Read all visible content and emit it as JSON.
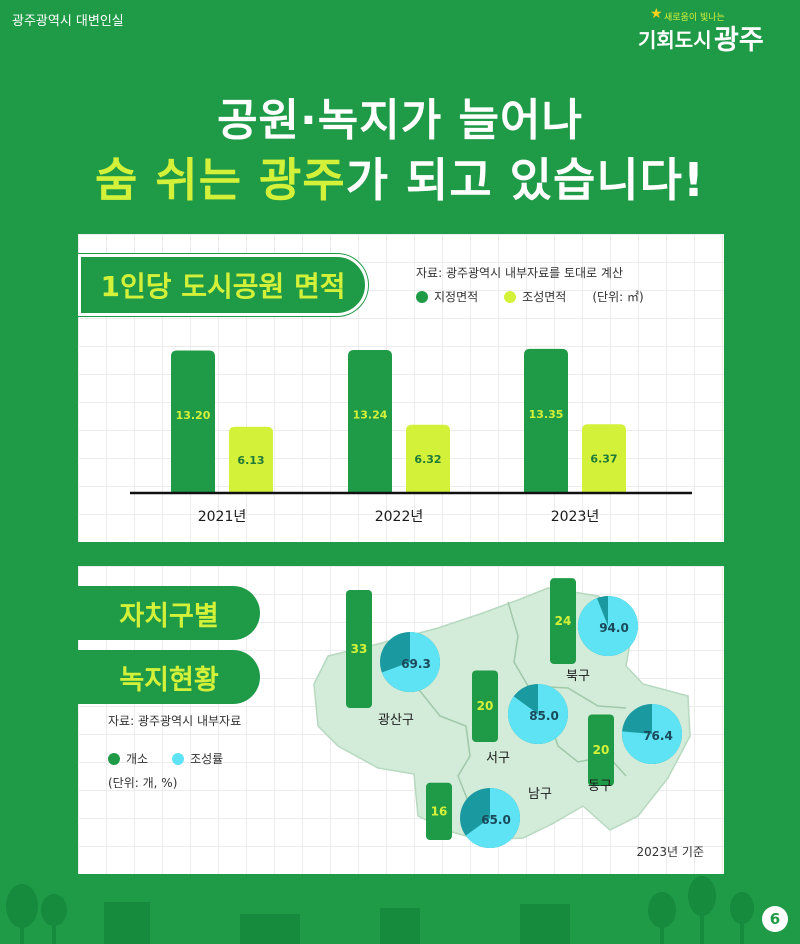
{
  "header": {
    "org": "광주광역시 대변인실",
    "logo_slogan": "새로움이 빛나는",
    "logo_main1": "기회도시",
    "logo_main2": "광주"
  },
  "title": {
    "line1": "공원·녹지가 늘어나",
    "line2_highlight": "숨 쉬는 광주",
    "line2_rest": "가 되고 있습니다!"
  },
  "colors": {
    "background": "#1f9a47",
    "designated": "#1f9a47",
    "developed": "#d4f13a",
    "rate": "#5ee3f5",
    "rate_dark": "#1a9aa0",
    "map_fill": "#d3ebd9"
  },
  "panel1": {
    "heading": "1인당 도시공원 면적",
    "source": "자료: 광주광역시 내부자료를 토대로 계산",
    "unit": "(단위: ㎡)"
  },
  "panel2": {
    "heading1": "자치구별",
    "heading2": "녹지현황",
    "source": "자료: 광주광역시 내부자료",
    "unit": "(단위: 개, %)",
    "basis": "2023년 기준"
  },
  "chart_data": [
    {
      "type": "bar",
      "title": "1인당 도시공원 면적",
      "categories": [
        "2021년",
        "2022년",
        "2023년"
      ],
      "series": [
        {
          "name": "지정면적",
          "values": [
            13.2,
            13.24,
            13.35
          ]
        },
        {
          "name": "조성면적",
          "values": [
            6.13,
            6.32,
            6.37
          ]
        }
      ],
      "value_labels": [
        [
          "13.20",
          "13.24",
          "13.35"
        ],
        [
          "6.13",
          "6.32",
          "6.37"
        ]
      ],
      "ylim": [
        0,
        15
      ],
      "grid": true,
      "legend": "top-right"
    },
    {
      "type": "bar",
      "title": "자치구별 녹지현황",
      "categories": [
        "광산구",
        "북구",
        "서구",
        "동구",
        "남구"
      ],
      "series": [
        {
          "name": "개소",
          "values": [
            33,
            24,
            20,
            20,
            16
          ]
        },
        {
          "name": "조성률",
          "values": [
            69.3,
            94.0,
            85.0,
            76.4,
            65.0
          ]
        }
      ],
      "count_labels": [
        "33",
        "24",
        "20",
        "20",
        "16"
      ],
      "rate_labels": [
        "69.3",
        "94.0",
        "85.0",
        "76.4",
        "65.0"
      ],
      "legend": "left"
    }
  ],
  "page": {
    "number": "6"
  }
}
